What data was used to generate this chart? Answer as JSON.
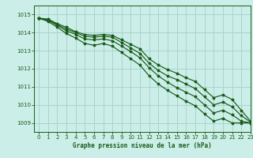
{
  "title": "Graphe pression niveau de la mer (hPa)",
  "background_color": "#cceee8",
  "grid_color": "#aad4cc",
  "line_color": "#1a5c1a",
  "xlim": [
    -0.5,
    23
  ],
  "ylim": [
    1008.5,
    1015.5
  ],
  "yticks": [
    1009,
    1010,
    1011,
    1012,
    1013,
    1014,
    1015
  ],
  "xticks": [
    0,
    1,
    2,
    3,
    4,
    5,
    6,
    7,
    8,
    9,
    10,
    11,
    12,
    13,
    14,
    15,
    16,
    17,
    18,
    19,
    20,
    21,
    22,
    23
  ],
  "series": [
    [
      1014.8,
      1014.75,
      1014.5,
      1014.3,
      1014.05,
      1013.9,
      1013.85,
      1013.9,
      1013.85,
      1013.6,
      1013.35,
      1013.1,
      1012.55,
      1012.2,
      1011.95,
      1011.75,
      1011.5,
      1011.3,
      1010.85,
      1010.4,
      1010.55,
      1010.3,
      1009.7,
      1009.1
    ],
    [
      1014.8,
      1014.72,
      1014.45,
      1014.2,
      1014.0,
      1013.8,
      1013.75,
      1013.8,
      1013.75,
      1013.45,
      1013.15,
      1012.85,
      1012.3,
      1011.9,
      1011.6,
      1011.4,
      1011.15,
      1010.9,
      1010.45,
      1010.0,
      1010.15,
      1009.9,
      1009.4,
      1009.05
    ],
    [
      1014.8,
      1014.68,
      1014.4,
      1014.1,
      1013.9,
      1013.65,
      1013.6,
      1013.65,
      1013.55,
      1013.25,
      1012.95,
      1012.6,
      1012.05,
      1011.6,
      1011.25,
      1010.95,
      1010.7,
      1010.45,
      1010.0,
      1009.55,
      1009.7,
      1009.45,
      1009.1,
      1009.0
    ],
    [
      1014.8,
      1014.62,
      1014.3,
      1013.95,
      1013.7,
      1013.4,
      1013.3,
      1013.4,
      1013.25,
      1012.9,
      1012.55,
      1012.2,
      1011.6,
      1011.15,
      1010.8,
      1010.5,
      1010.2,
      1009.95,
      1009.5,
      1009.1,
      1009.25,
      1009.0,
      1009.0,
      1009.0
    ]
  ]
}
